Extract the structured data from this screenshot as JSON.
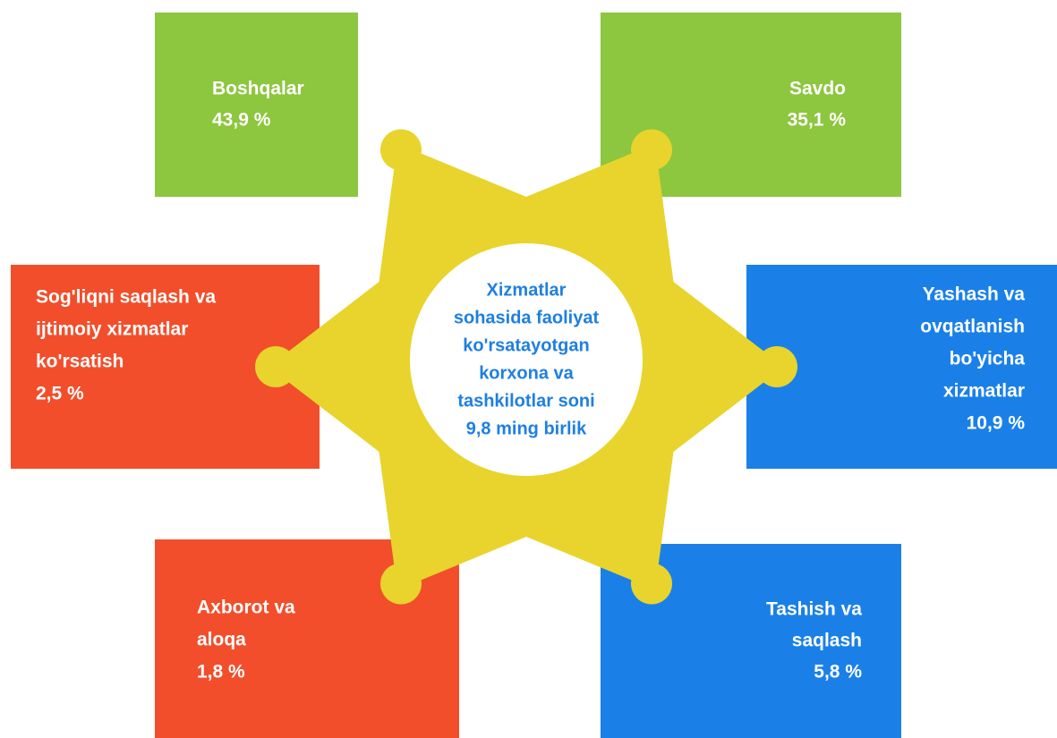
{
  "center": {
    "lines": [
      "Xizmatlar",
      "sohasida faoliyat",
      "ko'rsatayotgan",
      "korxona va",
      "tashkilotlar soni",
      "9,8 ming birlik"
    ]
  },
  "nodes": [
    {
      "lines": [
        "Boshqalar"
      ],
      "value": "43,9 %"
    },
    {
      "lines": [
        "Savdo"
      ],
      "value": "35,1 %"
    },
    {
      "lines": [
        "Sog'liqni saqlash va",
        "ijtimoiy xizmatlar",
        "ko'rsatish"
      ],
      "value": "2,5 %"
    },
    {
      "lines": [
        "Yashash va",
        "ovqatlanish",
        "bo'yicha",
        "xizmatlar"
      ],
      "value": "10,9 %"
    },
    {
      "lines": [
        "Axborot va",
        "aloqa"
      ],
      "value": "1,8 %"
    },
    {
      "lines": [
        "Tashish va",
        "saqlash"
      ],
      "value": "5,8 %"
    }
  ]
}
